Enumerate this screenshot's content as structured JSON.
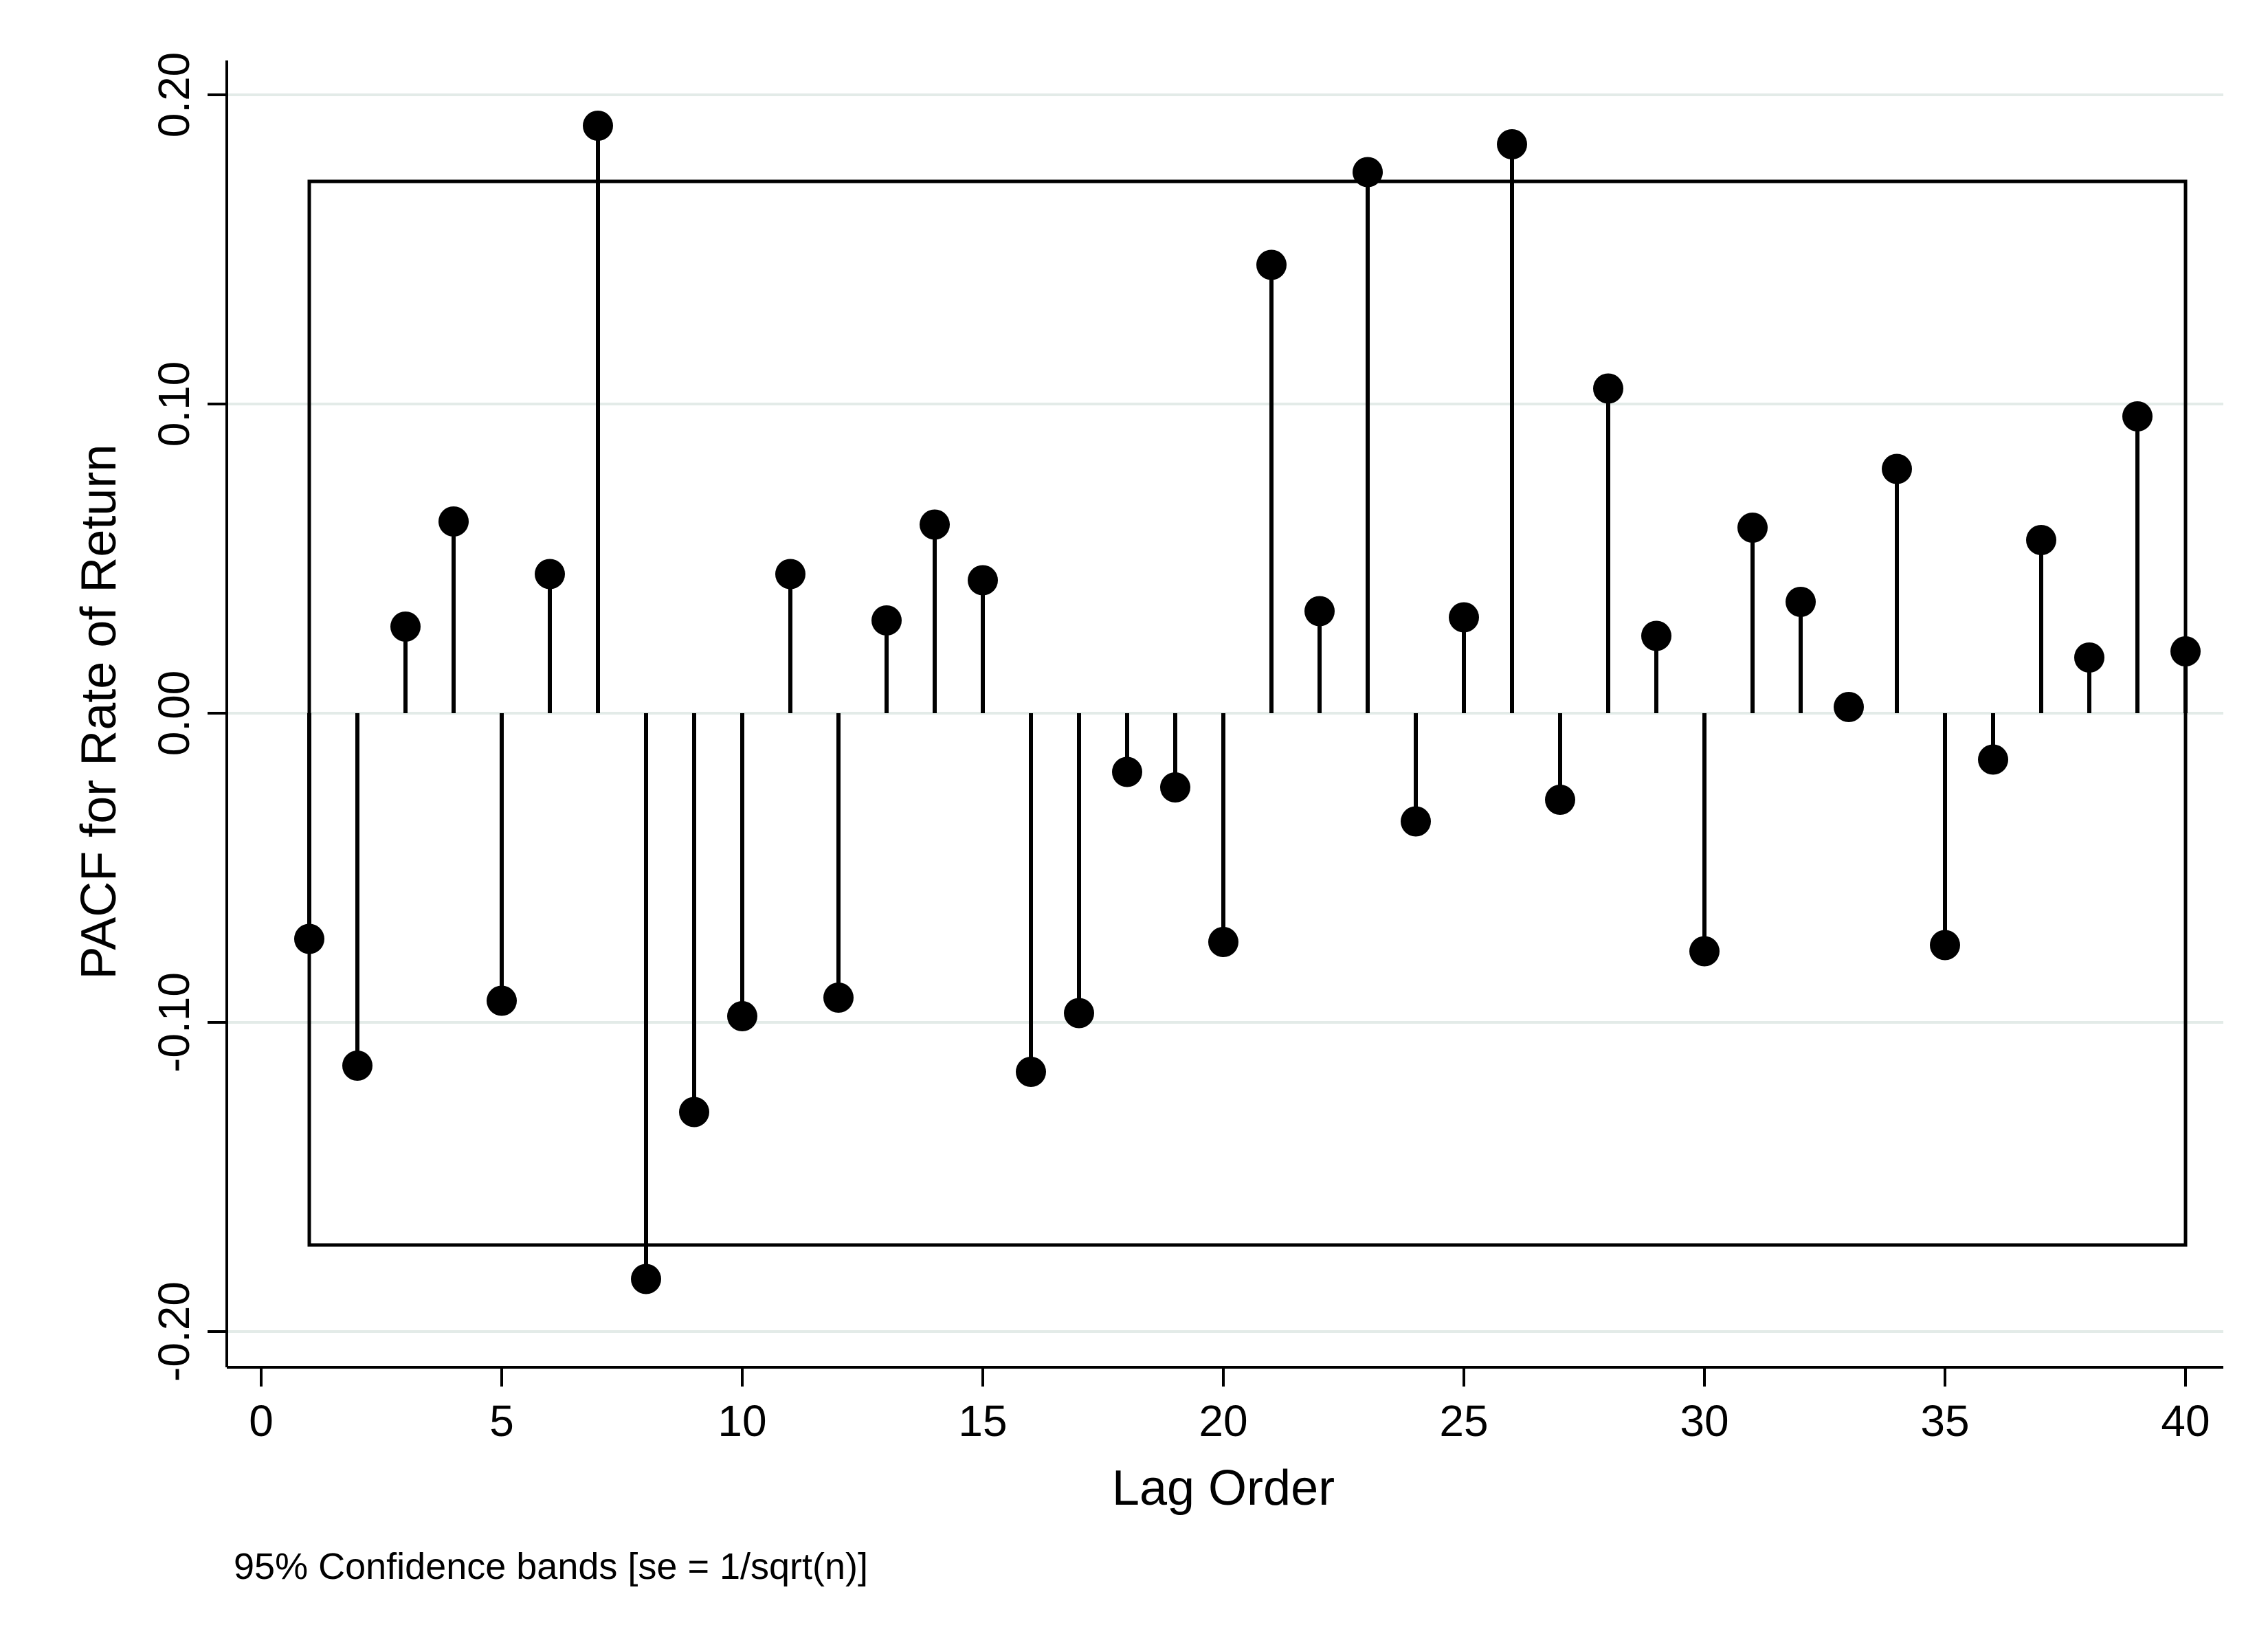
{
  "chart_data": {
    "type": "scatter",
    "style": "stem (needle) plot with confidence band box",
    "xlabel": "Lag Order",
    "ylabel": "PACF for Rate of Return",
    "note": "95% Confidence bands [se = 1/sqrt(n)]",
    "xlim": [
      0,
      40
    ],
    "ylim": [
      -0.2,
      0.2
    ],
    "xticks": [
      0,
      5,
      10,
      15,
      20,
      25,
      30,
      35,
      40
    ],
    "xtick_labels": [
      "0",
      "5",
      "10",
      "15",
      "20",
      "25",
      "30",
      "35",
      "40"
    ],
    "yticks": [
      -0.2,
      -0.1,
      0.0,
      0.1,
      0.2
    ],
    "ytick_labels": [
      "-0.20",
      "-0.10",
      "0.00",
      "0.10",
      "0.20"
    ],
    "grid": "horizontal",
    "confidence_band": {
      "lower": -0.172,
      "upper": 0.172,
      "from_lag": 1,
      "to_lag": 40
    },
    "x": [
      1,
      2,
      3,
      4,
      5,
      6,
      7,
      8,
      9,
      10,
      11,
      12,
      13,
      14,
      15,
      16,
      17,
      18,
      19,
      20,
      21,
      22,
      23,
      24,
      25,
      26,
      27,
      28,
      29,
      30,
      31,
      32,
      33,
      34,
      35,
      36,
      37,
      38,
      39,
      40
    ],
    "values": [
      -0.073,
      -0.114,
      0.028,
      0.062,
      -0.093,
      0.045,
      0.19,
      -0.183,
      -0.129,
      -0.098,
      0.045,
      -0.092,
      0.03,
      0.061,
      0.043,
      -0.116,
      -0.097,
      -0.019,
      -0.024,
      -0.074,
      0.145,
      0.033,
      0.175,
      -0.035,
      0.031,
      0.184,
      -0.028,
      0.105,
      0.025,
      -0.077,
      0.06,
      0.036,
      0.002,
      0.079,
      -0.075,
      -0.015,
      0.056,
      0.018,
      0.096,
      0.02
    ],
    "colors": {
      "marker": "#000000",
      "grid": "#e3ebe8",
      "axis": "#000000"
    }
  }
}
